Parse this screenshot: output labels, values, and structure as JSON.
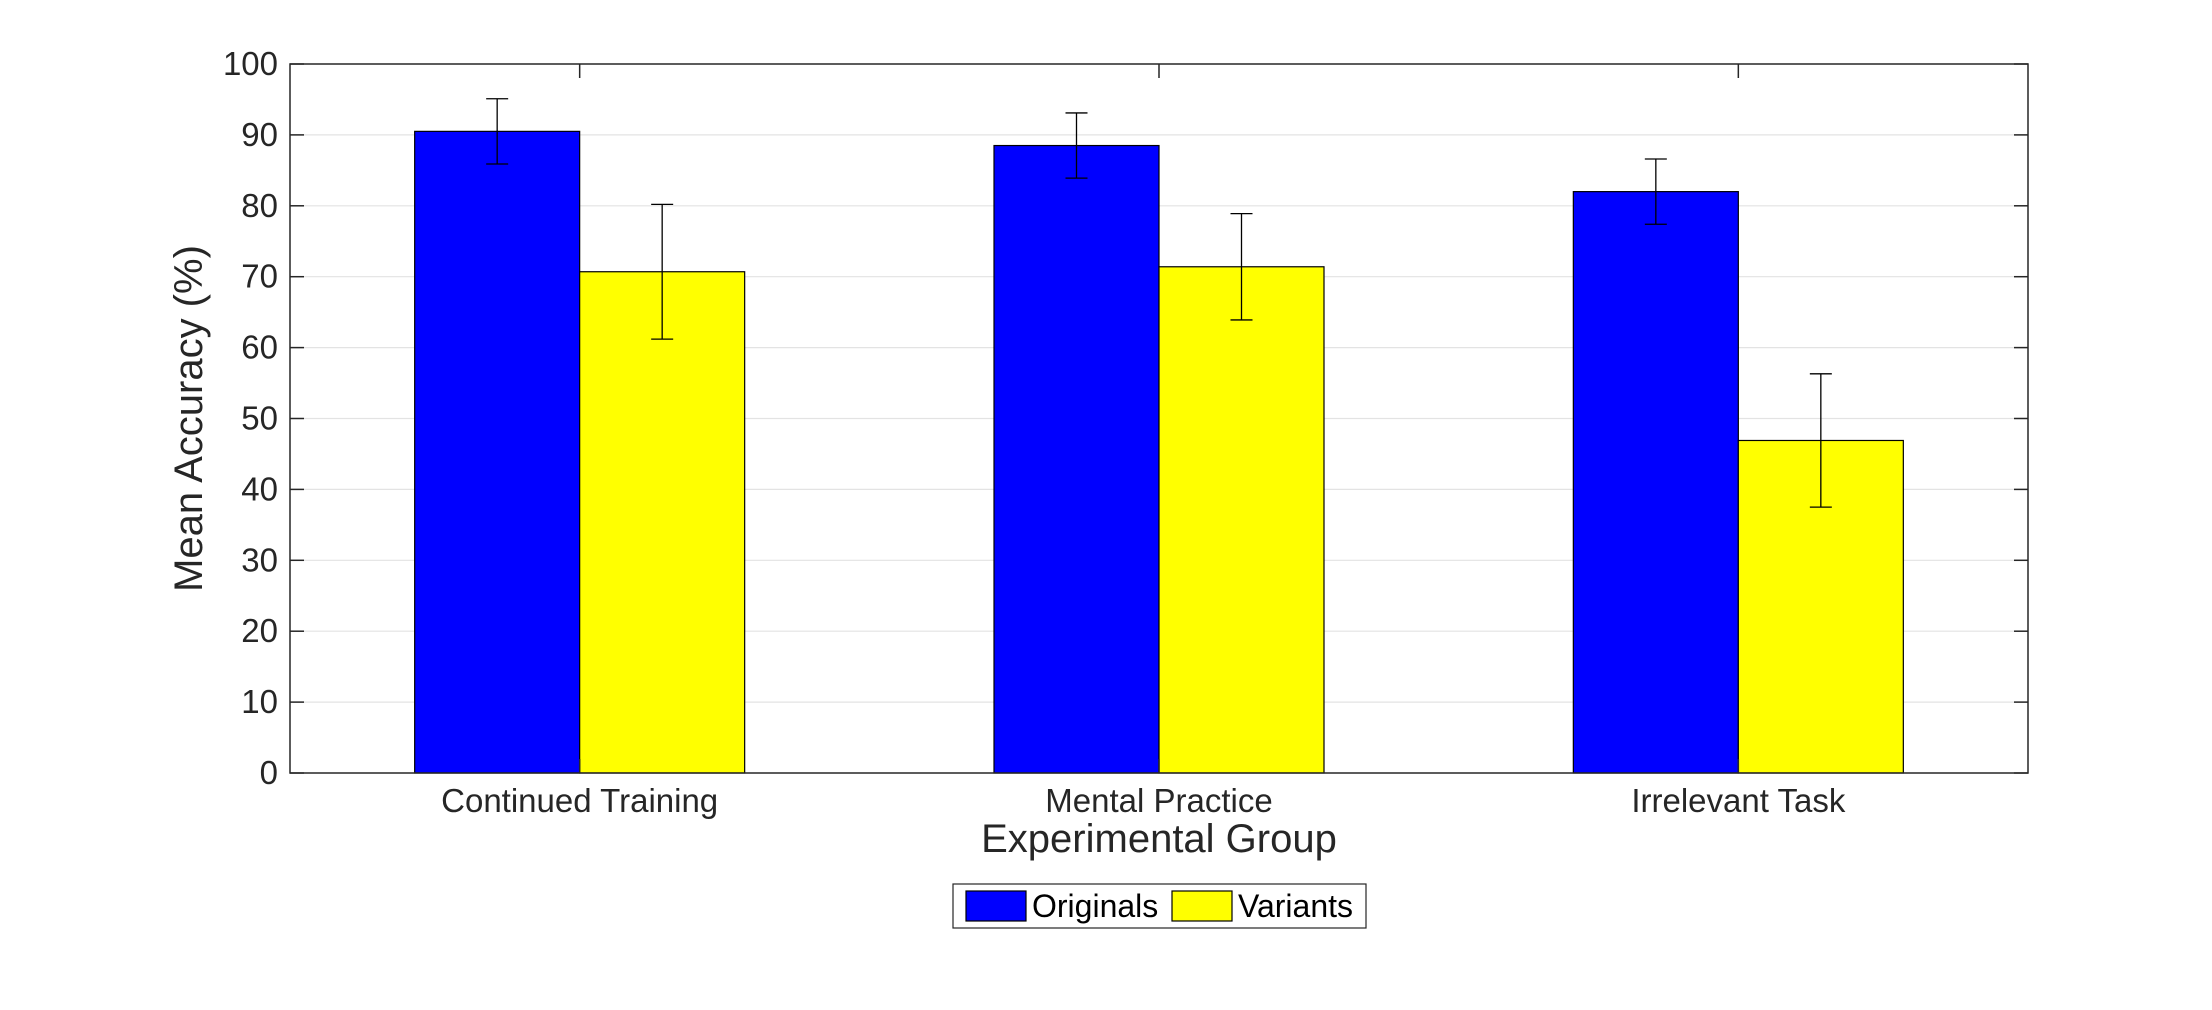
{
  "chart_data": {
    "type": "bar",
    "title": "",
    "xlabel": "Experimental Group",
    "ylabel": "Mean Accuracy (%)",
    "ylim": [
      0,
      100
    ],
    "yticks": [
      0,
      10,
      20,
      30,
      40,
      50,
      60,
      70,
      80,
      90,
      100
    ],
    "categories": [
      "Continued Training",
      "Mental Practice",
      "Irrelevant Task"
    ],
    "series": [
      {
        "name": "Originals",
        "color": "#0000ff",
        "values": [
          90.5,
          88.5,
          82.0
        ],
        "error": [
          4.6,
          4.6,
          4.6
        ]
      },
      {
        "name": "Variants",
        "color": "#ffff00",
        "values": [
          70.7,
          71.4,
          46.9
        ],
        "error": [
          9.5,
          7.5,
          9.4
        ]
      }
    ],
    "grid": true,
    "legend_position": "bottom"
  }
}
